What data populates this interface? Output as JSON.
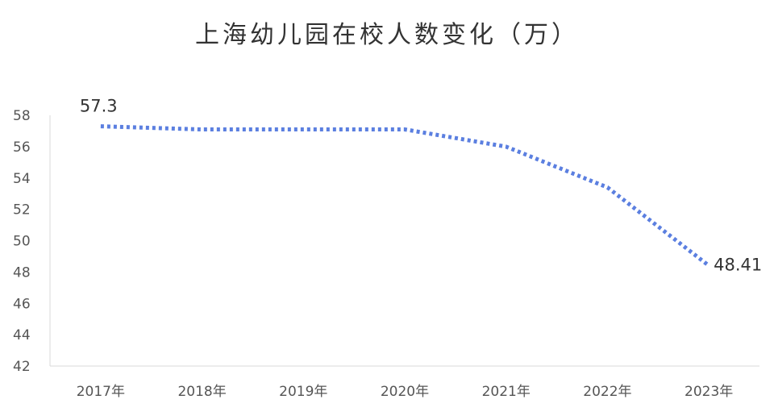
{
  "chart_data": {
    "type": "line",
    "title": "上海幼儿园在校人数变化（万）",
    "categories": [
      "2017年",
      "2018年",
      "2019年",
      "2020年",
      "2021年",
      "2022年",
      "2023年"
    ],
    "series": [
      {
        "values": [
          57.3,
          57.1,
          57.1,
          57.1,
          56.0,
          53.4,
          48.41
        ]
      }
    ],
    "data_labels": {
      "0": "57.3",
      "6": "48.41"
    },
    "ylim": [
      42,
      58
    ],
    "yticks": [
      42,
      44,
      46,
      48,
      50,
      52,
      54,
      56,
      58
    ],
    "grid": false,
    "legend": "none",
    "line_style": "dotted",
    "line_color": "#5B7FE0"
  }
}
